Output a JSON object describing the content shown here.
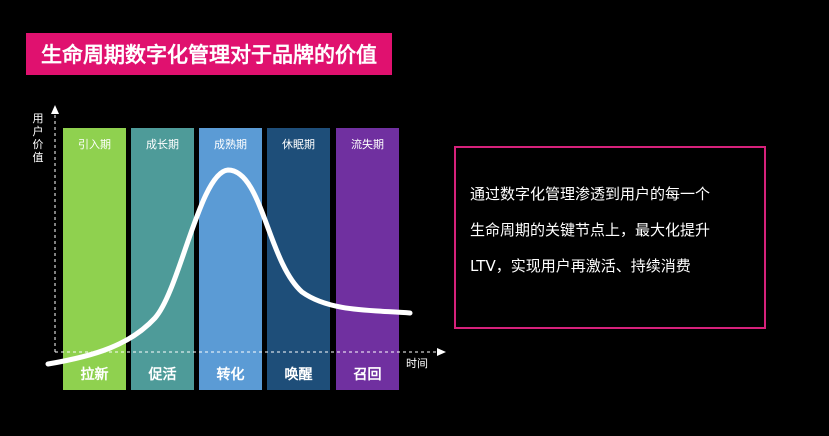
{
  "title": "生命周期数字化管理对于品牌的价值",
  "y_axis_label": "用户价值",
  "x_axis_label": "时间",
  "phases": [
    {
      "name": "引入期",
      "action": "拉新",
      "color": "#8fd14f"
    },
    {
      "name": "成长期",
      "action": "促活",
      "color": "#4e9b99"
    },
    {
      "name": "成熟期",
      "action": "转化",
      "color": "#5b9bd5"
    },
    {
      "name": "休眠期",
      "action": "唤醒",
      "color": "#1e4e79"
    },
    {
      "name": "流失期",
      "action": "召回",
      "color": "#7030a0"
    }
  ],
  "description": {
    "lines": [
      "通过数字化管理渗透到用户的每一个",
      "生命周期的关键节点上，最大化提升",
      "LTV，实现用户再激活、持续消费"
    ],
    "border_color": "#d6217b"
  },
  "colors": {
    "accent": "#e0116f",
    "background": "#000000",
    "curve": "#ffffff"
  }
}
